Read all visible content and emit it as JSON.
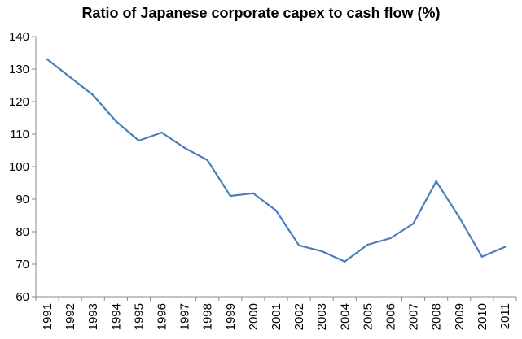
{
  "chart_data": {
    "type": "line",
    "title": "Ratio of Japanese corporate capex to cash flow (%)",
    "xlabel": "",
    "ylabel": "",
    "ylim": [
      60,
      140
    ],
    "yticks": [
      60,
      70,
      80,
      90,
      100,
      110,
      120,
      130,
      140
    ],
    "categories": [
      "1991",
      "1992",
      "1993",
      "1994",
      "1995",
      "1996",
      "1997",
      "1998",
      "1999",
      "2000",
      "2001",
      "2002",
      "2003",
      "2004",
      "2005",
      "2006",
      "2007",
      "2008",
      "2009",
      "2010",
      "2011"
    ],
    "series": [
      {
        "values": [
          133,
          127.5,
          122,
          114,
          108,
          110.5,
          105.8,
          102,
          91,
          91.8,
          86.5,
          75.8,
          74,
          70.8,
          76,
          78,
          82.5,
          95.5,
          84.5,
          72.3,
          75.3
        ],
        "color": "#4a7ebb"
      }
    ],
    "grid": false,
    "legend": "none"
  }
}
